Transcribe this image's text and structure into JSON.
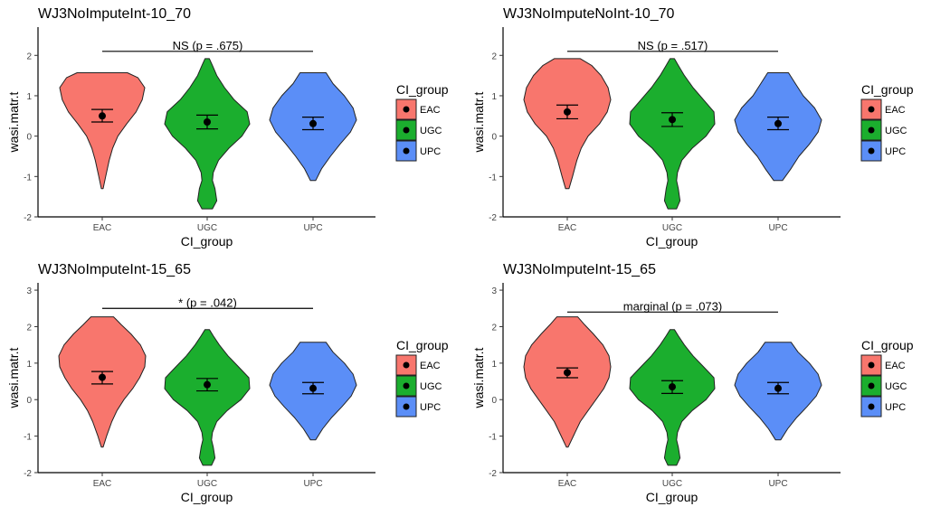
{
  "figure": {
    "panels": [
      {
        "title": "WJ3NoImputeInt-10_70",
        "xlabel": "CI_group",
        "ylabel": "wasi.matr.t",
        "ylim": [
          -2,
          2.7
        ],
        "yticks": [
          -2,
          -1,
          0,
          1,
          2
        ],
        "legend_title": "CI_group",
        "comparison_label": "NS (p = .675)"
      },
      {
        "title": "WJ3NoImputeNoInt-10_70",
        "xlabel": "CI_group",
        "ylabel": "wasi.matr.t",
        "ylim": [
          -2,
          2.7
        ],
        "yticks": [
          -2,
          -1,
          0,
          1,
          2
        ],
        "legend_title": "CI_group",
        "comparison_label": "NS (p = .517)"
      },
      {
        "title": "WJ3NoImputeInt-15_65",
        "xlabel": "CI_group",
        "ylabel": "wasi.matr.t",
        "ylim": [
          -2,
          3.2
        ],
        "yticks": [
          -2,
          -1,
          0,
          1,
          2,
          3
        ],
        "legend_title": "CI_group",
        "comparison_label": "* (p = .042)"
      },
      {
        "title": "WJ3NoImputeInt-15_65",
        "xlabel": "CI_group",
        "ylabel": "wasi.matr.t",
        "ylim": [
          -2,
          3.2
        ],
        "yticks": [
          -2,
          -1,
          0,
          1,
          2,
          3
        ],
        "legend_title": "CI_group",
        "comparison_label": "marginal (p = .073)"
      }
    ]
  },
  "chart_data": [
    {
      "type": "violin",
      "title": "WJ3NoImputeInt-10_70",
      "xlabel": "CI_group",
      "ylabel": "wasi.matr.t",
      "ylim": [
        -2,
        2.7
      ],
      "categories": [
        "EAC",
        "UGC",
        "UPC"
      ],
      "colors": [
        "#F8766D",
        "#1BAE2E",
        "#5B8EF7"
      ],
      "range": [
        [
          -1.3,
          1.57
        ],
        [
          -1.8,
          1.92
        ],
        [
          -1.1,
          1.57
        ]
      ],
      "shape": [
        [
          [
            -1.3,
            0.02
          ],
          [
            -1.0,
            0.08
          ],
          [
            -0.6,
            0.16
          ],
          [
            -0.3,
            0.24
          ],
          [
            0.0,
            0.36
          ],
          [
            0.3,
            0.56
          ],
          [
            0.6,
            0.78
          ],
          [
            0.9,
            0.92
          ],
          [
            1.2,
            0.98
          ],
          [
            1.45,
            0.82
          ],
          [
            1.57,
            0.58
          ]
        ],
        [
          [
            -1.8,
            0.12
          ],
          [
            -1.6,
            0.22
          ],
          [
            -1.3,
            0.18
          ],
          [
            -1.1,
            0.12
          ],
          [
            -0.9,
            0.14
          ],
          [
            -0.6,
            0.26
          ],
          [
            -0.3,
            0.5
          ],
          [
            0.0,
            0.8
          ],
          [
            0.3,
            0.98
          ],
          [
            0.6,
            0.92
          ],
          [
            0.9,
            0.62
          ],
          [
            1.2,
            0.4
          ],
          [
            1.5,
            0.22
          ],
          [
            1.75,
            0.12
          ],
          [
            1.92,
            0.05
          ]
        ],
        [
          [
            -1.1,
            0.06
          ],
          [
            -0.8,
            0.2
          ],
          [
            -0.5,
            0.4
          ],
          [
            -0.2,
            0.62
          ],
          [
            0.1,
            0.86
          ],
          [
            0.4,
            1.0
          ],
          [
            0.7,
            0.92
          ],
          [
            1.0,
            0.72
          ],
          [
            1.3,
            0.46
          ],
          [
            1.57,
            0.3
          ]
        ]
      ],
      "means": [
        0.5,
        0.35,
        0.31
      ],
      "error_bars": [
        [
          0.35,
          0.66
        ],
        [
          0.18,
          0.52
        ],
        [
          0.16,
          0.47
        ]
      ],
      "comparison": {
        "from": "EAC",
        "to": "UPC",
        "y": 2.1,
        "label": "NS (p = .675)"
      },
      "legend": {
        "title": "CI_group",
        "entries": [
          "EAC",
          "UGC",
          "UPC"
        ],
        "placement": "right"
      },
      "grid": false
    },
    {
      "type": "violin",
      "title": "WJ3NoImputeNoInt-10_70",
      "xlabel": "CI_group",
      "ylabel": "wasi.matr.t",
      "ylim": [
        -2,
        2.7
      ],
      "categories": [
        "EAC",
        "UGC",
        "UPC"
      ],
      "colors": [
        "#F8766D",
        "#1BAE2E",
        "#5B8EF7"
      ],
      "range": [
        [
          -1.3,
          1.92
        ],
        [
          -1.8,
          1.92
        ],
        [
          -1.1,
          1.57
        ]
      ],
      "shape": [
        [
          [
            -1.3,
            0.04
          ],
          [
            -1.0,
            0.12
          ],
          [
            -0.6,
            0.22
          ],
          [
            -0.3,
            0.32
          ],
          [
            0.0,
            0.48
          ],
          [
            0.3,
            0.74
          ],
          [
            0.6,
            0.92
          ],
          [
            0.9,
            1.0
          ],
          [
            1.2,
            0.94
          ],
          [
            1.5,
            0.78
          ],
          [
            1.75,
            0.56
          ],
          [
            1.92,
            0.3
          ]
        ],
        [
          [
            -1.8,
            0.1
          ],
          [
            -1.6,
            0.18
          ],
          [
            -1.3,
            0.14
          ],
          [
            -1.1,
            0.1
          ],
          [
            -0.9,
            0.12
          ],
          [
            -0.6,
            0.22
          ],
          [
            -0.3,
            0.46
          ],
          [
            0.0,
            0.78
          ],
          [
            0.3,
            0.98
          ],
          [
            0.6,
            0.96
          ],
          [
            0.9,
            0.72
          ],
          [
            1.2,
            0.48
          ],
          [
            1.5,
            0.28
          ],
          [
            1.75,
            0.14
          ],
          [
            1.92,
            0.05
          ]
        ],
        [
          [
            -1.1,
            0.1
          ],
          [
            -0.8,
            0.3
          ],
          [
            -0.5,
            0.48
          ],
          [
            -0.2,
            0.72
          ],
          [
            0.1,
            0.92
          ],
          [
            0.4,
            1.0
          ],
          [
            0.7,
            0.84
          ],
          [
            1.0,
            0.58
          ],
          [
            1.3,
            0.4
          ],
          [
            1.57,
            0.24
          ]
        ]
      ],
      "means": [
        0.6,
        0.41,
        0.31
      ],
      "error_bars": [
        [
          0.43,
          0.77
        ],
        [
          0.24,
          0.58
        ],
        [
          0.16,
          0.47
        ]
      ],
      "comparison": {
        "from": "EAC",
        "to": "UPC",
        "y": 2.1,
        "label": "NS (p = .517)"
      },
      "legend": {
        "title": "CI_group",
        "entries": [
          "EAC",
          "UGC",
          "UPC"
        ],
        "placement": "right"
      },
      "grid": false
    },
    {
      "type": "violin",
      "title": "WJ3NoImputeInt-15_65",
      "xlabel": "CI_group",
      "ylabel": "wasi.matr.t",
      "ylim": [
        -2,
        3.2
      ],
      "categories": [
        "EAC",
        "UGC",
        "UPC"
      ],
      "colors": [
        "#F8766D",
        "#1BAE2E",
        "#5B8EF7"
      ],
      "range": [
        [
          -1.3,
          2.27
        ],
        [
          -1.8,
          1.92
        ],
        [
          -1.1,
          1.57
        ]
      ],
      "shape": [
        [
          [
            -1.3,
            0.02
          ],
          [
            -1.0,
            0.1
          ],
          [
            -0.6,
            0.22
          ],
          [
            -0.3,
            0.34
          ],
          [
            0.0,
            0.5
          ],
          [
            0.3,
            0.7
          ],
          [
            0.6,
            0.86
          ],
          [
            0.9,
            0.98
          ],
          [
            1.2,
            1.0
          ],
          [
            1.5,
            0.88
          ],
          [
            1.8,
            0.66
          ],
          [
            2.05,
            0.44
          ],
          [
            2.27,
            0.26
          ]
        ],
        [
          [
            -1.8,
            0.1
          ],
          [
            -1.6,
            0.18
          ],
          [
            -1.3,
            0.14
          ],
          [
            -1.1,
            0.1
          ],
          [
            -0.9,
            0.12
          ],
          [
            -0.6,
            0.22
          ],
          [
            -0.3,
            0.46
          ],
          [
            0.0,
            0.78
          ],
          [
            0.3,
            0.98
          ],
          [
            0.6,
            0.96
          ],
          [
            0.9,
            0.72
          ],
          [
            1.2,
            0.48
          ],
          [
            1.5,
            0.28
          ],
          [
            1.75,
            0.14
          ],
          [
            1.92,
            0.05
          ]
        ],
        [
          [
            -1.1,
            0.06
          ],
          [
            -0.8,
            0.22
          ],
          [
            -0.5,
            0.42
          ],
          [
            -0.2,
            0.66
          ],
          [
            0.1,
            0.88
          ],
          [
            0.4,
            1.0
          ],
          [
            0.7,
            0.92
          ],
          [
            1.0,
            0.72
          ],
          [
            1.3,
            0.46
          ],
          [
            1.57,
            0.3
          ]
        ]
      ],
      "means": [
        0.61,
        0.41,
        0.31
      ],
      "error_bars": [
        [
          0.43,
          0.77
        ],
        [
          0.24,
          0.58
        ],
        [
          0.16,
          0.47
        ]
      ],
      "comparison": {
        "from": "EAC",
        "to": "UPC",
        "y": 2.5,
        "label": "* (p = .042)"
      },
      "legend": {
        "title": "CI_group",
        "entries": [
          "EAC",
          "UGC",
          "UPC"
        ],
        "placement": "right"
      },
      "grid": false
    },
    {
      "type": "violin",
      "title": "WJ3NoImputeInt-15_65",
      "xlabel": "CI_group",
      "ylabel": "wasi.matr.t",
      "ylim": [
        -2,
        3.2
      ],
      "categories": [
        "EAC",
        "UGC",
        "UPC"
      ],
      "colors": [
        "#F8766D",
        "#1BAE2E",
        "#5B8EF7"
      ],
      "range": [
        [
          -1.3,
          2.27
        ],
        [
          -1.8,
          1.92
        ],
        [
          -1.1,
          1.57
        ]
      ],
      "shape": [
        [
          [
            -1.3,
            0.02
          ],
          [
            -1.0,
            0.14
          ],
          [
            -0.6,
            0.3
          ],
          [
            -0.3,
            0.48
          ],
          [
            0.0,
            0.66
          ],
          [
            0.3,
            0.84
          ],
          [
            0.6,
            0.96
          ],
          [
            0.9,
            1.0
          ],
          [
            1.2,
            0.96
          ],
          [
            1.5,
            0.82
          ],
          [
            1.8,
            0.6
          ],
          [
            2.05,
            0.4
          ],
          [
            2.27,
            0.24
          ]
        ],
        [
          [
            -1.8,
            0.1
          ],
          [
            -1.6,
            0.18
          ],
          [
            -1.3,
            0.14
          ],
          [
            -1.1,
            0.1
          ],
          [
            -0.9,
            0.12
          ],
          [
            -0.6,
            0.22
          ],
          [
            -0.3,
            0.46
          ],
          [
            0.0,
            0.78
          ],
          [
            0.3,
            0.98
          ],
          [
            0.6,
            0.96
          ],
          [
            0.9,
            0.72
          ],
          [
            1.2,
            0.48
          ],
          [
            1.5,
            0.28
          ],
          [
            1.75,
            0.14
          ],
          [
            1.92,
            0.05
          ]
        ],
        [
          [
            -1.1,
            0.06
          ],
          [
            -0.8,
            0.22
          ],
          [
            -0.5,
            0.42
          ],
          [
            -0.2,
            0.66
          ],
          [
            0.1,
            0.88
          ],
          [
            0.4,
            1.0
          ],
          [
            0.7,
            0.92
          ],
          [
            1.0,
            0.72
          ],
          [
            1.3,
            0.46
          ],
          [
            1.57,
            0.3
          ]
        ]
      ],
      "means": [
        0.74,
        0.35,
        0.31
      ],
      "error_bars": [
        [
          0.6,
          0.87
        ],
        [
          0.17,
          0.52
        ],
        [
          0.16,
          0.47
        ]
      ],
      "comparison": {
        "from": "EAC",
        "to": "UPC",
        "y": 2.4,
        "label": "marginal (p = .073)"
      },
      "legend": {
        "title": "CI_group",
        "entries": [
          "EAC",
          "UGC",
          "UPC"
        ],
        "placement": "right"
      },
      "grid": false
    }
  ]
}
